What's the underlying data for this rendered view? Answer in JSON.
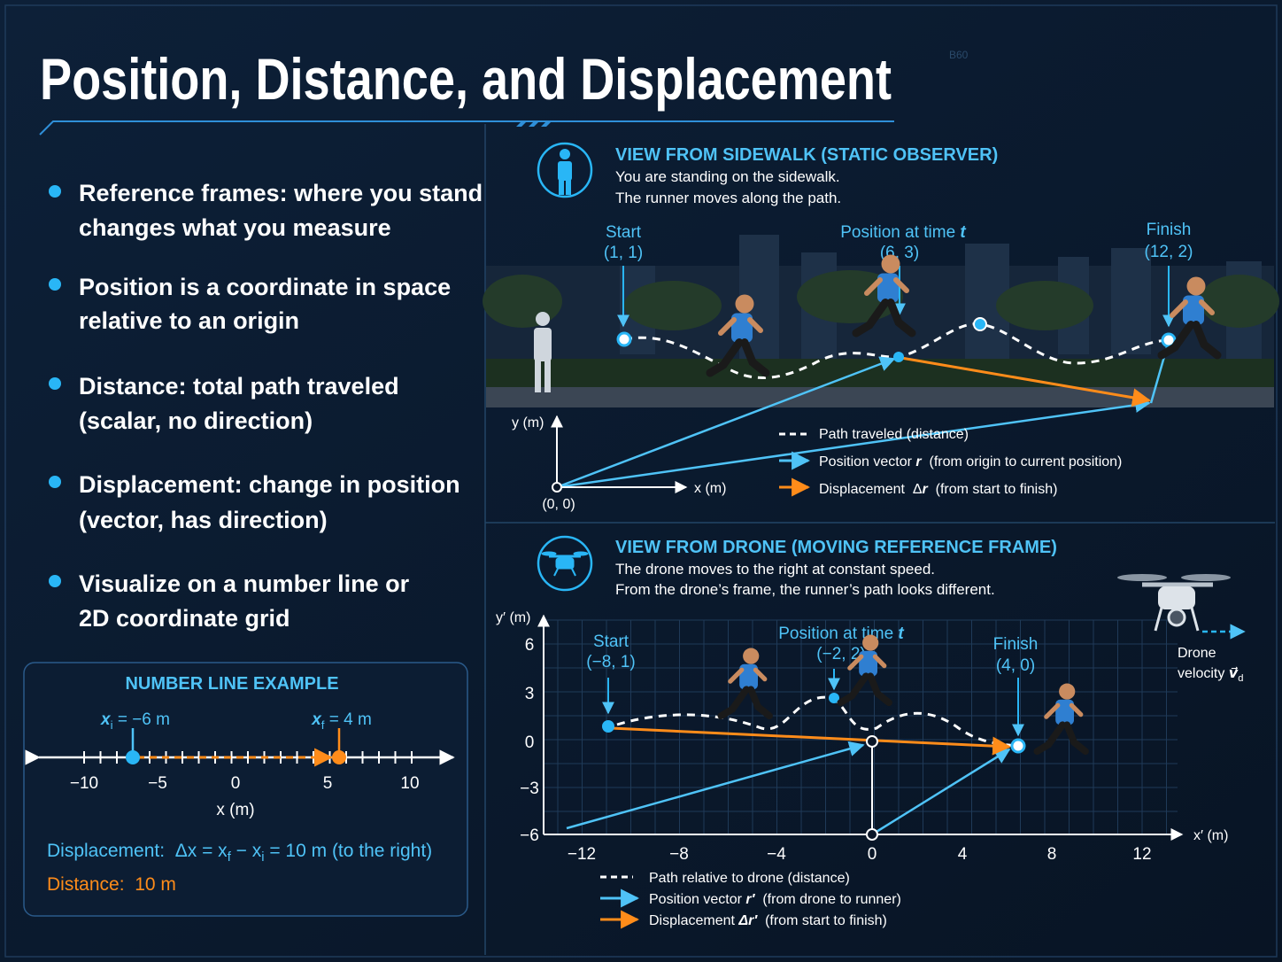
{
  "header": {
    "title": "Position, Distance, and Displacement",
    "background_label": "B60"
  },
  "bullets": [
    [
      "Reference frames: where you stand",
      "changes what you measure"
    ],
    [
      "Position is a coordinate in space",
      "relative to an origin"
    ],
    [
      "Distance: total path traveled",
      "(scalar, no direction)"
    ],
    [
      "Displacement: change in position",
      "(vector, has direction)"
    ],
    [
      "Visualize on a number line or",
      "2D coordinate grid"
    ]
  ],
  "number_line": {
    "title": "NUMBER LINE EXAMPLE",
    "start_label": [
      "x",
      "i",
      " = −6 m"
    ],
    "end_label": [
      "x",
      "f",
      " = 4 m"
    ],
    "ticks": [
      "−10",
      "−5",
      "0",
      "5",
      "10"
    ],
    "axis_label": "x (m)",
    "displacement": [
      "Displacement:  Δx = x",
      "f",
      " − x",
      "i",
      " = 10 m (to the right)"
    ],
    "distance": "Distance:  10 m"
  },
  "sidewalk_view": {
    "heading": "VIEW FROM SIDEWALK (STATIC OBSERVER)",
    "lines": [
      "You are standing on the sidewalk.",
      "The runner moves along the path."
    ],
    "start": [
      "Start",
      "(1, 1)"
    ],
    "middle": [
      "Position at time ",
      "t",
      "(6, 3)"
    ],
    "finish": [
      "Finish",
      "(12, 2)"
    ],
    "y_axis": "y (m)",
    "x_axis": "x (m)",
    "origin": "(0, 0)",
    "legend": [
      [
        "Path traveled (distance)"
      ],
      [
        "Position vector ",
        "r",
        "  (from origin to current position)"
      ],
      [
        "Displacement  Δ",
        "r",
        "  (from start to finish)"
      ]
    ]
  },
  "drone_view": {
    "heading": "VIEW FROM DRONE (MOVING REFERENCE FRAME)",
    "lines": [
      "The drone moves to the right at constant speed.",
      "From the drone’s frame, the runner’s path looks different."
    ],
    "start": [
      "Start",
      "(−8, 1)"
    ],
    "middle": [
      "Position at time ",
      "t",
      "(−2, 2)"
    ],
    "finish": [
      "Finish",
      "(4, 0)"
    ],
    "yticks": [
      "6",
      "3",
      "0",
      "−3",
      "−6"
    ],
    "xticks": [
      "−12",
      "−8",
      "−4",
      "0",
      "4",
      "8",
      "12"
    ],
    "y_axis": "y′ (m)",
    "x_axis": "x′ (m)",
    "velocity": [
      "Drone",
      "velocity ",
      "v⃗",
      "d"
    ],
    "legend": [
      [
        "Path relative to drone (distance)"
      ],
      [
        "Position vector ",
        "r′",
        "  (from drone to runner)"
      ],
      [
        "Displacement ",
        "Δr′",
        "  (from start to finish)"
      ]
    ]
  }
}
